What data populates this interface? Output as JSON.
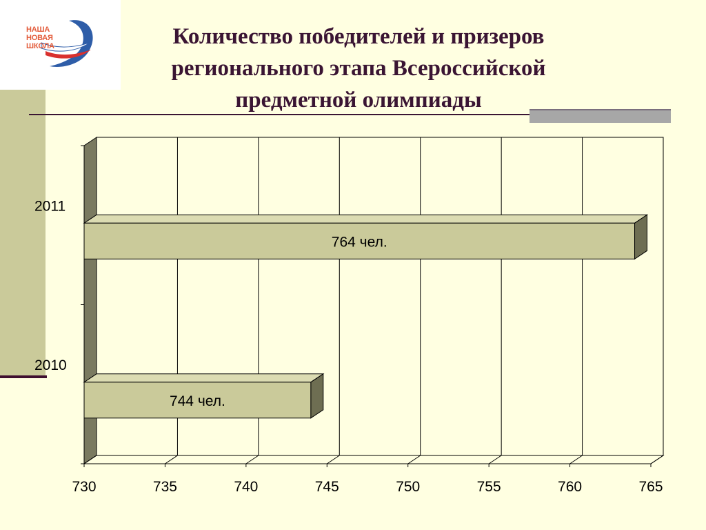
{
  "logo": {
    "lines": [
      "НАША",
      "НОВАЯ",
      "ШКОЛА"
    ],
    "colors": {
      "text": "#E35B3A",
      "swoosh_blue": "#2E5DA8",
      "swoosh_red": "#D9302E"
    }
  },
  "title": "Количество победителей и призеров регионального этапа Всероссийской предметной олимпиады",
  "colors": {
    "background": "#FFFFE1",
    "title": "#3A1533",
    "bar_face": "#CACA9A",
    "bar_side": "#6E6E52",
    "bar_top": "#DCDCB2",
    "wall_side": "#7A7A60",
    "accent_strip": "#CACA9A",
    "accent_line": "#3F0F2F",
    "gray_rule": "#A7A7A7"
  },
  "chart_data": {
    "type": "bar",
    "orientation": "horizontal",
    "3d": true,
    "categories": [
      "2010",
      "2011"
    ],
    "values": [
      744,
      764
    ],
    "data_labels": [
      "744 чел.",
      "764  чел."
    ],
    "xlim": [
      730,
      765
    ],
    "xticks": [
      730,
      735,
      740,
      745,
      750,
      755,
      760,
      765
    ],
    "xtick_labels": [
      "730",
      "735",
      "740",
      "745",
      "750",
      "755",
      "760",
      "765"
    ],
    "grid": "vertical",
    "legend": "none"
  }
}
